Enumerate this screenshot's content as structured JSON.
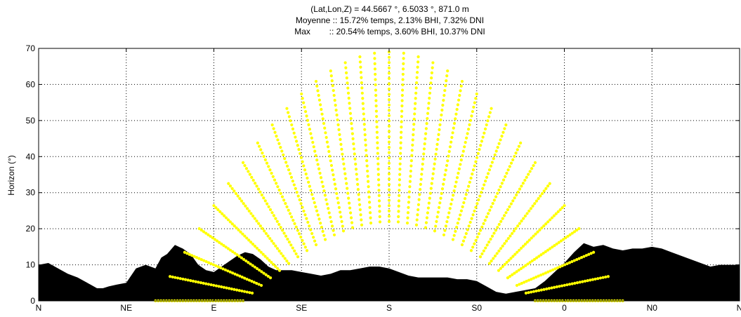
{
  "chart_data": {
    "type": "scatter",
    "title_lines": [
      "(Lat,Lon,Z) = 44.5667 °, 6.5033 °, 871.0 m",
      "Moyenne :: 15.72% temps, 2.13% BHI, 7.32% DNI",
      "Max        :: 20.54% temps, 3.60% BHI, 10.37% DNI"
    ],
    "xlabel": "",
    "ylabel": "Horizon (°)",
    "xlim": [
      0,
      360
    ],
    "ylim": [
      0,
      70
    ],
    "x_ticks": [
      {
        "value": 0,
        "label": "N"
      },
      {
        "value": 45,
        "label": "NE"
      },
      {
        "value": 90,
        "label": "E"
      },
      {
        "value": 135,
        "label": "SE"
      },
      {
        "value": 180,
        "label": "S"
      },
      {
        "value": 225,
        "label": "S0"
      },
      {
        "value": 270,
        "label": "0"
      },
      {
        "value": 315,
        "label": "N0"
      },
      {
        "value": 360,
        "label": "N"
      }
    ],
    "y_ticks": [
      0,
      10,
      20,
      30,
      40,
      50,
      60,
      70
    ],
    "grid": true,
    "grid_style": "dotted",
    "colors": {
      "horizon": "#000000",
      "sun_points": "#ffff00",
      "background": "#ffffff"
    },
    "horizon_profile": {
      "name": "horizon",
      "azimuth": [
        0,
        5,
        10,
        15,
        20,
        25,
        30,
        33,
        36,
        40,
        45,
        50,
        55,
        60,
        63,
        66,
        70,
        74,
        78,
        82,
        86,
        90,
        94,
        98,
        102,
        106,
        110,
        114,
        118,
        122,
        126,
        130,
        135,
        140,
        145,
        150,
        155,
        160,
        165,
        170,
        175,
        180,
        185,
        190,
        195,
        200,
        205,
        210,
        215,
        220,
        225,
        230,
        235,
        240,
        245,
        250,
        255,
        260,
        265,
        270,
        275,
        280,
        285,
        290,
        295,
        300,
        305,
        310,
        315,
        320,
        325,
        330,
        335,
        340,
        345,
        350,
        355,
        360
      ],
      "elevation": [
        10,
        10.5,
        9,
        7.5,
        6.5,
        5,
        3.5,
        3.5,
        4,
        4.5,
        5,
        9,
        10,
        9,
        12,
        13,
        15.5,
        14.5,
        13,
        10,
        8.5,
        8,
        9.5,
        11,
        12.5,
        13.5,
        13,
        11.5,
        9.5,
        8.5,
        8.5,
        8.5,
        8,
        7.5,
        7,
        7.5,
        8.5,
        8.5,
        9,
        9.5,
        9.5,
        9,
        8,
        7,
        6.5,
        6.5,
        6.5,
        6.5,
        6,
        6,
        5.5,
        4,
        2.5,
        2,
        2.5,
        3,
        3.5,
        5.5,
        8,
        10.5,
        13.5,
        16,
        15,
        15.5,
        14.5,
        14,
        14.5,
        14.5,
        15,
        14.5,
        13.5,
        12.5,
        11.5,
        10.5,
        9.5,
        10,
        10,
        10
      ]
    },
    "sun_paths": {
      "name": "sun positions",
      "arc_count": 33,
      "noon_elevation_min": 22,
      "noon_elevation_max": 69,
      "rise_azimuth_min": 105,
      "rise_azimuth_max": 60,
      "set_azimuth_min": 255,
      "set_azimuth_max": 300
    }
  }
}
